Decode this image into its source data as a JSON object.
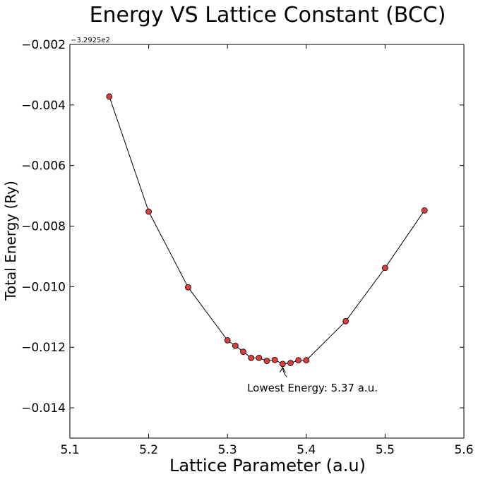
{
  "chart_data": {
    "type": "line",
    "title": "Energy VS Lattice Constant (BCC)",
    "xlabel": "Lattice Parameter (a.u)",
    "ylabel": "Total Energy (Ry)",
    "y_offset_label": "−3.2925e2",
    "xlim": [
      5.1,
      5.6
    ],
    "ylim": [
      -0.015,
      -0.002
    ],
    "x_ticks": [
      5.1,
      5.2,
      5.3,
      5.4,
      5.5,
      5.6
    ],
    "x_tick_labels": [
      "5.1",
      "5.2",
      "5.3",
      "5.4",
      "5.5",
      "5.6"
    ],
    "y_ticks": [
      -0.014,
      -0.012,
      -0.01,
      -0.008,
      -0.006,
      -0.004,
      -0.002
    ],
    "y_tick_labels": [
      "−0.014",
      "−0.012",
      "−0.010",
      "−0.008",
      "−0.006",
      "−0.004",
      "−0.002"
    ],
    "grid": false,
    "series": [
      {
        "x": [
          5.15,
          5.2,
          5.25,
          5.3,
          5.31,
          5.32,
          5.33,
          5.34,
          5.35,
          5.36,
          5.37,
          5.38,
          5.39,
          5.4,
          5.45,
          5.5,
          5.55
        ],
        "y": [
          -0.00372,
          -0.00752,
          -0.01002,
          -0.01177,
          -0.01195,
          -0.01215,
          -0.01235,
          -0.01235,
          -0.01245,
          -0.01242,
          -0.01255,
          -0.01252,
          -0.01243,
          -0.01243,
          -0.01114,
          -0.00938,
          -0.00748
        ],
        "line_color": "#000000",
        "marker_color": "#e03c3c",
        "marker_edge": "#000000"
      }
    ],
    "annotation": {
      "text": "Lowest Energy: 5.37 a.u.",
      "point": [
        5.37,
        -0.01255
      ],
      "text_anchor": [
        5.325,
        -0.01335
      ]
    }
  }
}
